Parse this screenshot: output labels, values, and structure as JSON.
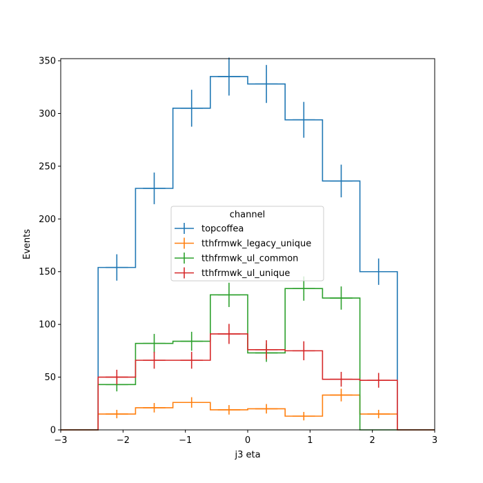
{
  "chart_data": {
    "type": "histogram-step",
    "title": "",
    "xlabel": "j3 eta",
    "ylabel": "Events",
    "xlim": [
      -3,
      3
    ],
    "ylim": [
      0,
      352
    ],
    "x_ticks": [
      -3,
      -2,
      -1,
      0,
      1,
      2,
      3
    ],
    "x_tick_labels": [
      "−3",
      "−2",
      "−1",
      "0",
      "1",
      "2",
      "3"
    ],
    "y_ticks": [
      0,
      50,
      100,
      150,
      200,
      250,
      300,
      350
    ],
    "y_tick_labels": [
      "0",
      "50",
      "100",
      "150",
      "200",
      "250",
      "300",
      "350"
    ],
    "grid": false,
    "bin_edges": [
      -3.0,
      -2.4,
      -1.8,
      -1.2,
      -0.6,
      0.0,
      0.6,
      1.2,
      1.8,
      2.4,
      3.0
    ],
    "legend": {
      "title": "channel",
      "placement": "center"
    },
    "series": [
      {
        "name": "topcoffea",
        "color": "#1f77b4",
        "values": [
          0,
          154,
          229,
          305,
          335,
          328,
          294,
          236,
          150,
          0
        ],
        "errors": [
          0,
          12.5,
          15,
          17.5,
          18,
          18,
          17,
          15.5,
          12.5,
          0
        ]
      },
      {
        "name": "tthfrmwk_legacy_unique",
        "color": "#ff7f0e",
        "values": [
          0,
          15,
          21,
          26,
          19,
          20,
          13,
          33,
          15,
          0
        ],
        "errors": [
          0,
          4,
          4.5,
          5,
          4.5,
          4.5,
          4,
          6,
          4,
          0
        ]
      },
      {
        "name": "tthfrmwk_ul_common",
        "color": "#2ca02c",
        "values": [
          0,
          43,
          82,
          84,
          128,
          73,
          134,
          125,
          0,
          0
        ],
        "errors": [
          0,
          6.5,
          9,
          9,
          11.5,
          8.5,
          11.5,
          11,
          0,
          0
        ]
      },
      {
        "name": "tthfrmwk_ul_unique",
        "color": "#d62728",
        "values": [
          0,
          50,
          66,
          66,
          91,
          76,
          75,
          48,
          47,
          0
        ],
        "errors": [
          0,
          7,
          8,
          8,
          9.5,
          9,
          9,
          7,
          7,
          0
        ]
      }
    ]
  }
}
